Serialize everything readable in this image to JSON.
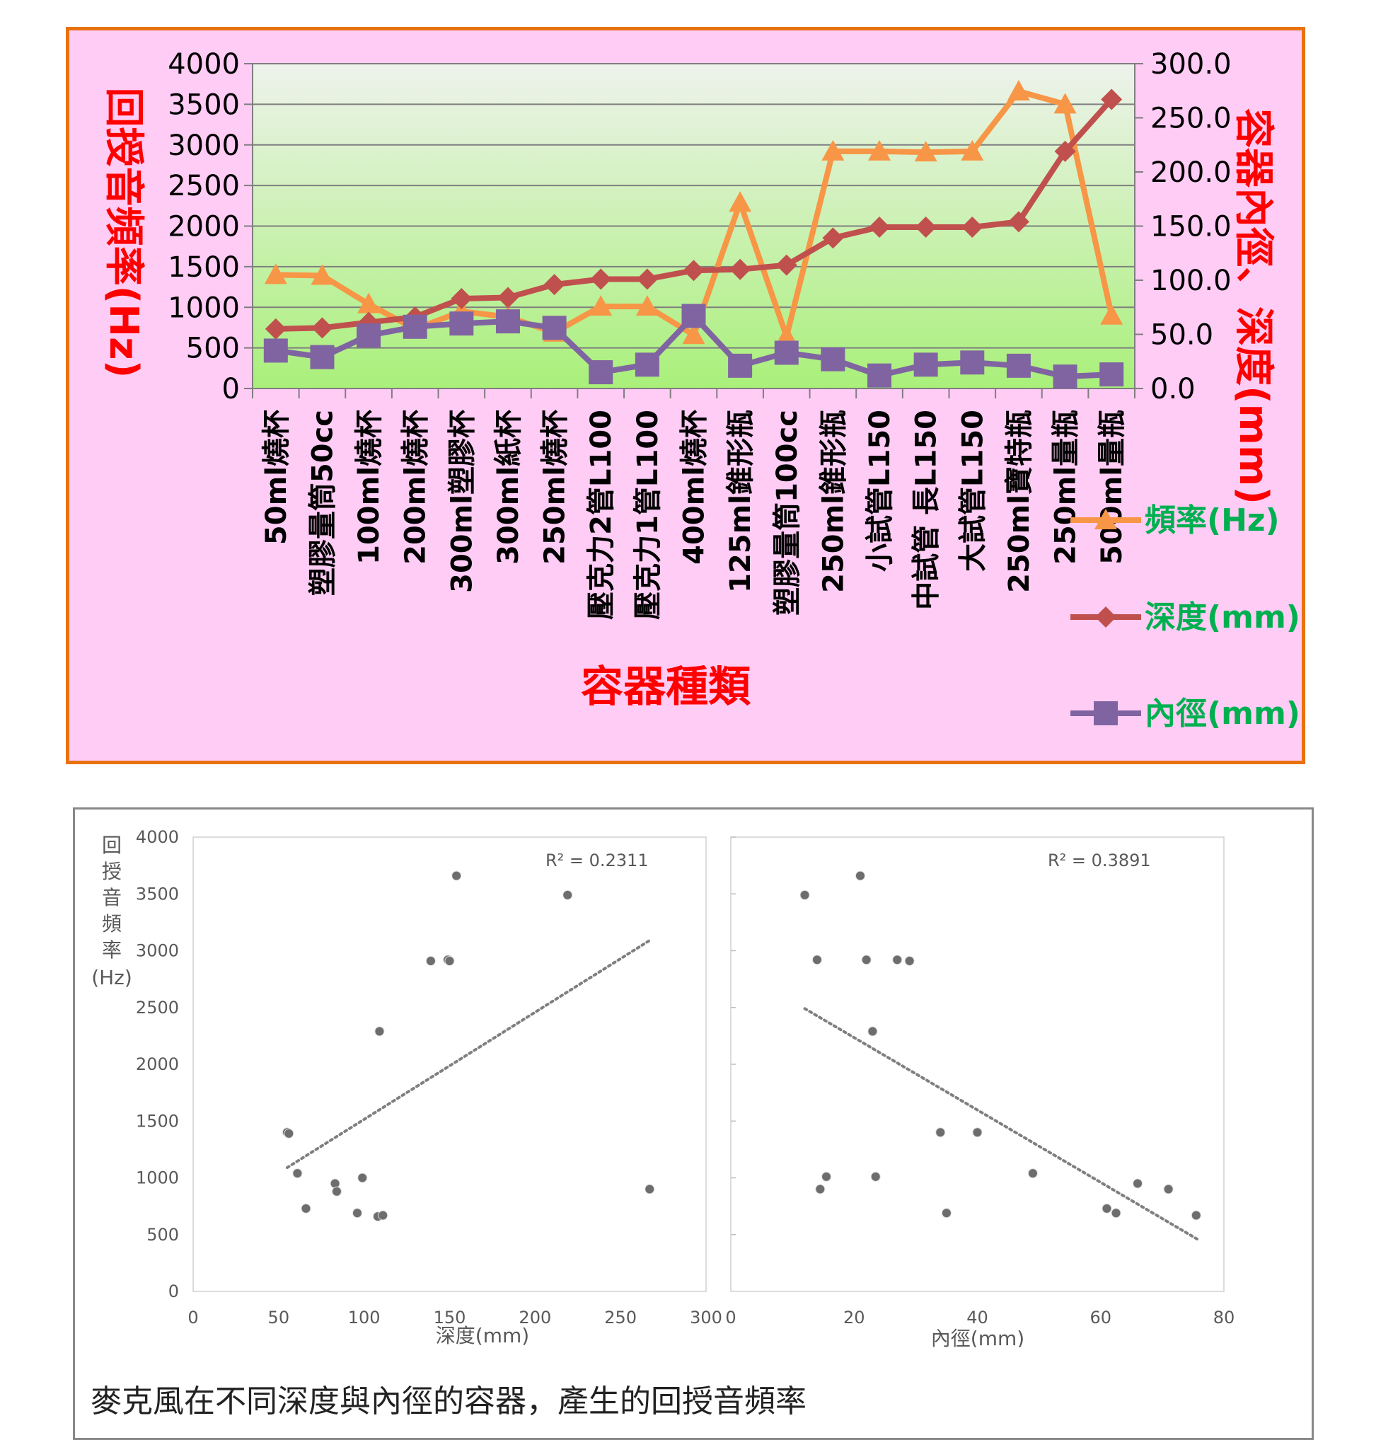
{
  "chart_data": [
    {
      "type": "line",
      "xlabel": "容器種類",
      "ylabel": "回授音頻率(Hz)",
      "y2label": "容器內徑、深度(mm)",
      "categories": [
        "50ml燒杯",
        "塑膠量筒50cc",
        "100ml燒杯",
        "200ml燒杯",
        "300ml塑膠杯",
        "300ml紙杯",
        "250ml燒杯",
        "壓克力2管L100",
        "壓克力1管L100",
        "400ml燒杯",
        "125ml錐形瓶",
        "塑膠量筒100cc",
        "250ml錐形瓶",
        "小試管L150",
        "中試管 長L150",
        "大試管L150",
        "250ml寶特瓶",
        "250ml量瓶",
        "500ml量瓶"
      ],
      "ylim": [
        0,
        4000
      ],
      "yticks": [
        "0",
        "500",
        "1000",
        "1500",
        "2000",
        "2500",
        "3000",
        "3500",
        "4000"
      ],
      "y2lim": [
        0,
        300
      ],
      "y2ticks": [
        "0.0",
        "50.0",
        "100.0",
        "150.0",
        "200.0",
        "250.0",
        "300.0"
      ],
      "series": [
        {
          "name": "頻率(Hz)",
          "axis": "left",
          "color": "#f79646",
          "marker": "triangle",
          "values": [
            1400,
            1390,
            1040,
            730,
            950,
            880,
            690,
            1010,
            1010,
            660,
            2290,
            640,
            2920,
            2920,
            2910,
            2920,
            3660,
            3500,
            900
          ]
        },
        {
          "name": "深度(mm)",
          "axis": "right",
          "color": "#c0504d",
          "marker": "diamond",
          "values": [
            55,
            56,
            61,
            66,
            83,
            84,
            96,
            101,
            101,
            109,
            110,
            114,
            139,
            149,
            149,
            149,
            154,
            219,
            267
          ]
        },
        {
          "name": "內徑(mm)",
          "axis": "right",
          "color": "#8064a2",
          "marker": "square",
          "values": [
            35,
            29,
            49,
            57,
            60,
            62,
            56,
            15,
            22,
            67,
            21,
            33,
            27,
            12,
            22,
            24,
            21,
            11,
            13
          ]
        }
      ],
      "legend_position": "right",
      "background": "#ffccf5",
      "border_color": "#e8720f"
    },
    {
      "type": "scatter",
      "xlabel": "深度(mm)",
      "ylabel": "回授音頻率(Hz)",
      "xlim": [
        0,
        300
      ],
      "ylim": [
        0,
        4000
      ],
      "xticks": [
        "0",
        "50",
        "100",
        "150",
        "200",
        "250",
        "300"
      ],
      "yticks": [
        "0",
        "500",
        "1000",
        "1500",
        "2000",
        "2500",
        "3000",
        "3500",
        "4000"
      ],
      "annotation": "R² = 0.2311",
      "points": [
        [
          55,
          1400
        ],
        [
          56,
          1390
        ],
        [
          61,
          1040
        ],
        [
          66,
          730
        ],
        [
          83,
          950
        ],
        [
          84,
          880
        ],
        [
          96,
          690
        ],
        [
          99,
          1000
        ],
        [
          108,
          660
        ],
        [
          109,
          2290
        ],
        [
          111,
          670
        ],
        [
          139,
          2910
        ],
        [
          149,
          2920
        ],
        [
          150,
          2910
        ],
        [
          154,
          3660
        ],
        [
          219,
          3490
        ],
        [
          267,
          900
        ]
      ],
      "trendline": [
        [
          55,
          1090
        ],
        [
          267,
          3090
        ]
      ]
    },
    {
      "type": "scatter",
      "xlabel": "內徑(mm)",
      "xlim": [
        0,
        80
      ],
      "xticks": [
        "0",
        "20",
        "40",
        "60",
        "80"
      ],
      "annotation": "R² = 0.3891",
      "points": [
        [
          12,
          3490
        ],
        [
          14,
          2920
        ],
        [
          14.5,
          900
        ],
        [
          15.5,
          1010
        ],
        [
          21,
          3660
        ],
        [
          22,
          2920
        ],
        [
          23,
          2290
        ],
        [
          23.5,
          1010
        ],
        [
          27,
          2920
        ],
        [
          29,
          2910
        ],
        [
          34,
          1400
        ],
        [
          35,
          690
        ],
        [
          40,
          1400
        ],
        [
          49,
          1040
        ],
        [
          61,
          730
        ],
        [
          62.5,
          690
        ],
        [
          66,
          950
        ],
        [
          71,
          900
        ],
        [
          75.5,
          670
        ]
      ],
      "trendline": [
        [
          12,
          2490
        ],
        [
          76,
          450
        ]
      ]
    }
  ],
  "caption": "麥克風在不同深度與內徑的容器，產生的回授音頻率"
}
